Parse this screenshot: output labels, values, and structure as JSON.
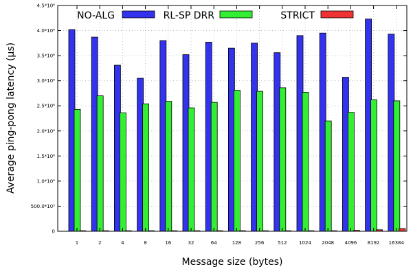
{
  "chart_data": {
    "type": "bar",
    "xlabel": "Message size (bytes)",
    "ylabel": "Average ping-pong latency (µs)",
    "categories": [
      "1",
      "2",
      "4",
      "8",
      "16",
      "32",
      "64",
      "128",
      "256",
      "512",
      "1024",
      "2048",
      "4096",
      "8192",
      "16384"
    ],
    "ylim": [
      0,
      4500000
    ],
    "yticks": [
      {
        "value": 0,
        "label": "0"
      },
      {
        "value": 500000,
        "label": "500.0*10³"
      },
      {
        "value": 1000000,
        "label": "1.0*10⁶"
      },
      {
        "value": 1500000,
        "label": "1.5*10⁶"
      },
      {
        "value": 2000000,
        "label": "2.0*10⁶"
      },
      {
        "value": 2500000,
        "label": "2.5*10⁶"
      },
      {
        "value": 3000000,
        "label": "3.0*10⁶"
      },
      {
        "value": 3500000,
        "label": "3.5*10⁶"
      },
      {
        "value": 4000000,
        "label": "4.0*10⁶"
      },
      {
        "value": 4500000,
        "label": "4.5*10⁶"
      }
    ],
    "grid": true,
    "legend_position": "top",
    "series": [
      {
        "name": "NO-ALG",
        "color": "#3333ee",
        "values": [
          4020000,
          3870000,
          3310000,
          3050000,
          3800000,
          3520000,
          3770000,
          3650000,
          3750000,
          3560000,
          3900000,
          3950000,
          3070000,
          4230000,
          3930000
        ]
      },
      {
        "name": "RL-SP DRR",
        "color": "#33ee33",
        "values": [
          2430000,
          2700000,
          2360000,
          2540000,
          2590000,
          2460000,
          2570000,
          2810000,
          2790000,
          2860000,
          2770000,
          2200000,
          2370000,
          2620000,
          2600000
        ]
      },
      {
        "name": "STRICT",
        "color": "#ee3333",
        "values": [
          2000,
          2000,
          2000,
          2000,
          2000,
          3000,
          4000,
          5000,
          5000,
          6000,
          8000,
          10000,
          18000,
          30000,
          55000
        ]
      }
    ]
  }
}
